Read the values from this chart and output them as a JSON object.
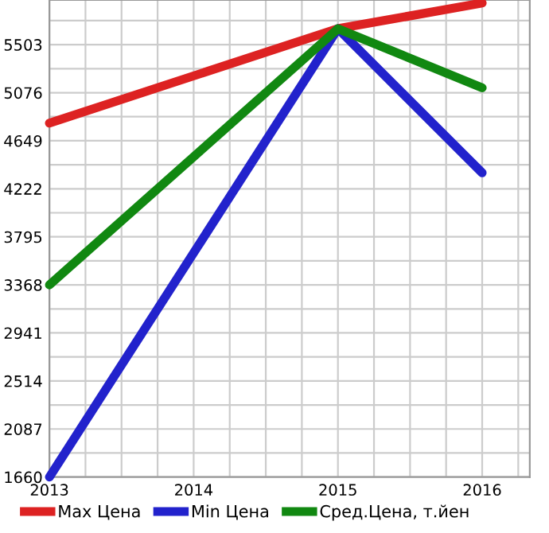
{
  "chart_data": {
    "type": "line",
    "x": [
      2013,
      2015,
      2016
    ],
    "series": [
      {
        "name": "Max Цена",
        "color": "#dd2222",
        "values": [
          4806,
          5645,
          5873
        ]
      },
      {
        "name": "Min Цена",
        "color": "#2222cc",
        "values": [
          1660,
          5645,
          4364
        ]
      },
      {
        "name": "Сред.Цена, т.йен",
        "color": "#118811",
        "values": [
          3368,
          5645,
          5119
        ]
      }
    ],
    "xlim": [
      2013,
      2016.33
    ],
    "ylim": [
      1660,
      5900
    ],
    "xticks": [
      2013,
      {
        "value": 2013.25,
        "label": null
      },
      {
        "value": 2013.5,
        "label": null
      },
      {
        "value": 2013.75,
        "label": null
      },
      2014,
      {
        "value": 2014.25,
        "label": null
      },
      {
        "value": 2014.5,
        "label": null
      },
      {
        "value": 2014.75,
        "label": null
      },
      2015,
      {
        "value": 2015.25,
        "label": null
      },
      {
        "value": 2015.5,
        "label": null
      },
      {
        "value": 2015.75,
        "label": null
      },
      2016,
      {
        "value": 2016.25,
        "label": null
      }
    ],
    "yticks": [
      1660,
      {
        "value": 1873.5,
        "label": null
      },
      2087,
      {
        "value": 2300.5,
        "label": null
      },
      2514,
      {
        "value": 2727.5,
        "label": null
      },
      2941,
      {
        "value": 3154.5,
        "label": null
      },
      3368,
      {
        "value": 3581.5,
        "label": null
      },
      3795,
      {
        "value": 4008.5,
        "label": null
      },
      4222,
      {
        "value": 4435.5,
        "label": null
      },
      4649,
      {
        "value": 4862.5,
        "label": null
      },
      5076,
      {
        "value": 5289.5,
        "label": null
      },
      5503,
      {
        "value": 5716.5,
        "label": null
      }
    ],
    "grid": true,
    "legend": "bottom",
    "marker": "none",
    "line_style": "solid"
  }
}
